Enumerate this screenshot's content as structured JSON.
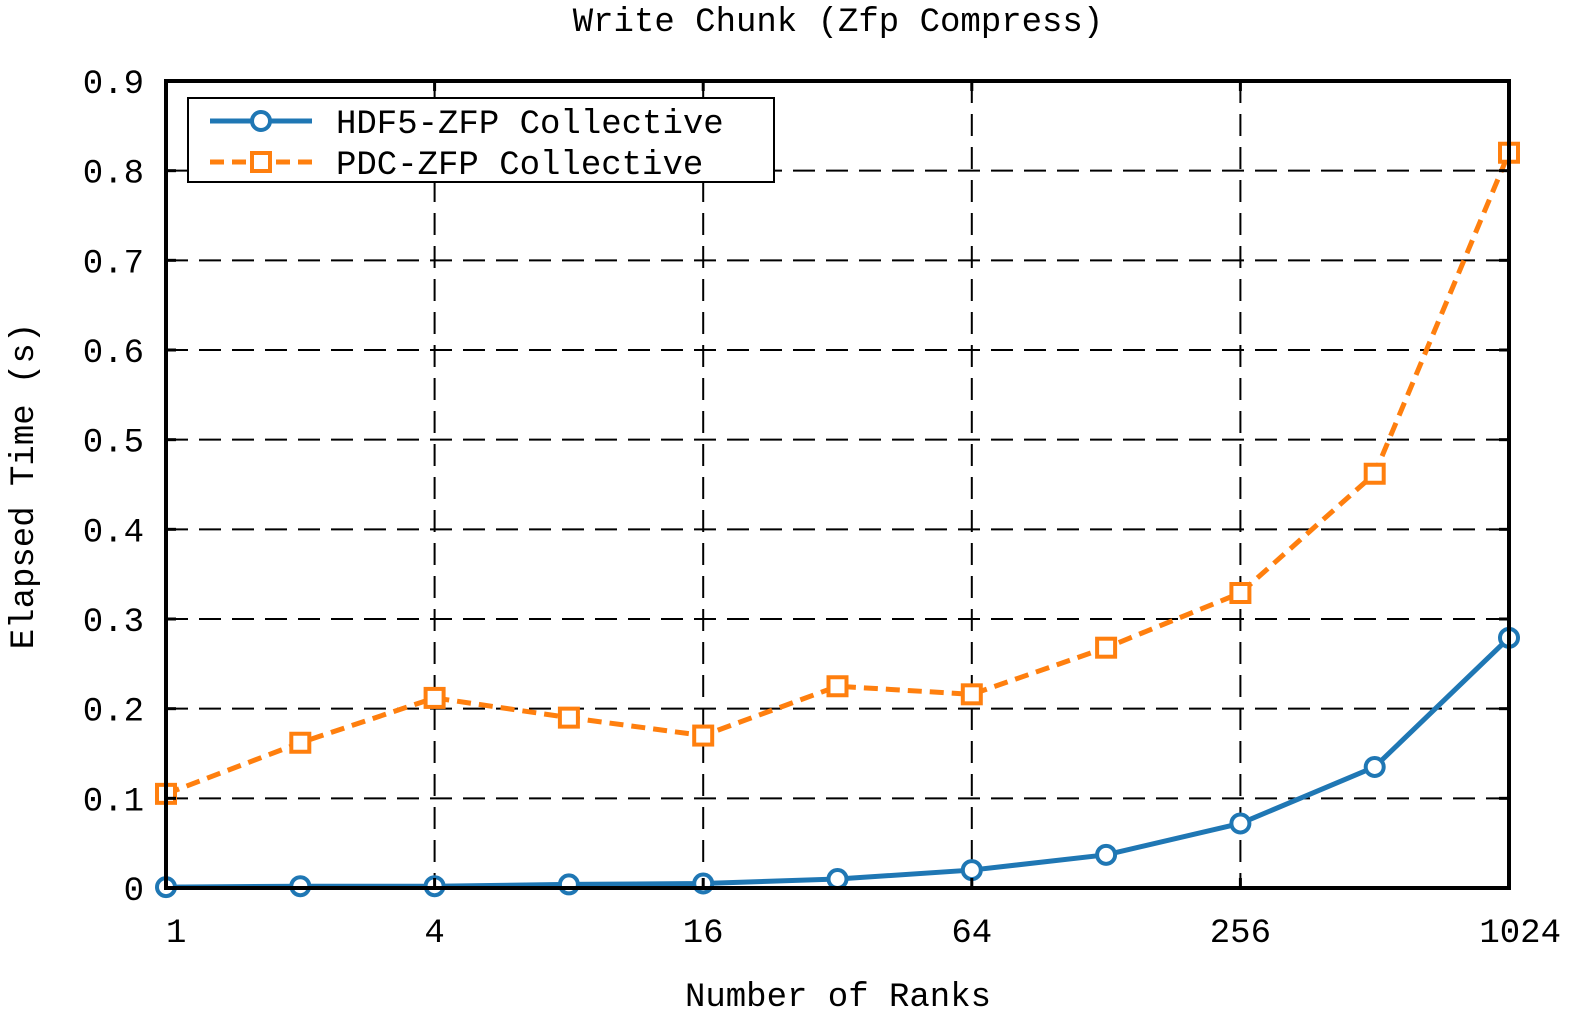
{
  "chart_data": {
    "type": "line",
    "title": "Write Chunk (Zfp Compress)",
    "xlabel": "Number of Ranks",
    "ylabel": "Elapsed Time (s)",
    "x_scale": "log2",
    "x_ticks": [
      1,
      4,
      16,
      64,
      256,
      1024
    ],
    "x_tick_labels": [
      "1",
      "4",
      "16",
      "64",
      "256",
      "1024"
    ],
    "y_ticks": [
      0,
      0.1,
      0.2,
      0.3,
      0.4,
      0.5,
      0.6,
      0.7,
      0.8,
      0.9
    ],
    "y_tick_labels": [
      "0",
      "0.1",
      "0.2",
      "0.3",
      "0.4",
      "0.5",
      "0.6",
      "0.7",
      "0.8",
      "0.9"
    ],
    "xlim": [
      1,
      1024
    ],
    "ylim": [
      0,
      0.9
    ],
    "grid": true,
    "legend_position": "top-left",
    "x": [
      1,
      2,
      4,
      8,
      16,
      32,
      64,
      128,
      256,
      512,
      1024
    ],
    "series": [
      {
        "name": "HDF5-ZFP Collective",
        "color": "#1f77b4",
        "line_style": "solid",
        "marker": "circle",
        "values": [
          0.001,
          0.002,
          0.002,
          0.004,
          0.005,
          0.01,
          0.02,
          0.037,
          0.072,
          0.135,
          0.279
        ]
      },
      {
        "name": "PDC-ZFP Collective",
        "color": "#ff7f0e",
        "line_style": "dashed",
        "marker": "square",
        "values": [
          0.105,
          0.162,
          0.212,
          0.19,
          0.17,
          0.225,
          0.216,
          0.268,
          0.329,
          0.462,
          0.82
        ]
      }
    ]
  }
}
